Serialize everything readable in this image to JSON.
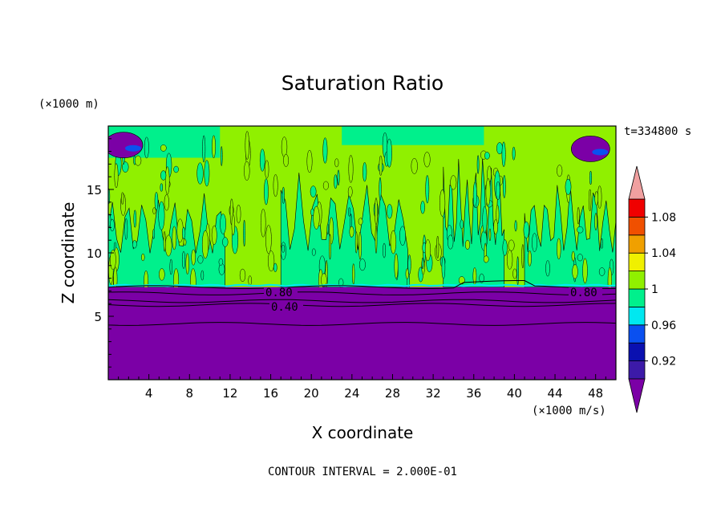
{
  "chart_data": {
    "type": "heatmap",
    "title": "Saturation Ratio",
    "xlabel": "X coordinate",
    "ylabel": "Z coordinate",
    "x_unit": "(×1000 m/s)",
    "y_unit": "(×1000 m)",
    "time_label": "t=334800 s",
    "footer": "CONTOUR INTERVAL = 2.000E-01",
    "xlim": [
      0,
      50
    ],
    "ylim": [
      0,
      20
    ],
    "x_ticks": [
      4,
      8,
      12,
      16,
      20,
      24,
      28,
      32,
      36,
      40,
      44,
      48
    ],
    "y_ticks": [
      5,
      10,
      15
    ],
    "colorbar": {
      "levels": [
        {
          "lo": null,
          "hi": 0.9,
          "color": "#7b00a6"
        },
        {
          "lo": 0.9,
          "hi": 0.92,
          "color": "#3c1aa8"
        },
        {
          "lo": 0.92,
          "hi": 0.94,
          "color": "#0a10b0"
        },
        {
          "lo": 0.94,
          "hi": 0.96,
          "color": "#0a50f0"
        },
        {
          "lo": 0.96,
          "hi": 0.98,
          "color": "#00e8f0"
        },
        {
          "lo": 0.98,
          "hi": 1.0,
          "color": "#00f08c"
        },
        {
          "lo": 1.0,
          "hi": 1.02,
          "color": "#90f000"
        },
        {
          "lo": 1.02,
          "hi": 1.04,
          "color": "#f0f000"
        },
        {
          "lo": 1.04,
          "hi": 1.06,
          "color": "#f0a000"
        },
        {
          "lo": 1.06,
          "hi": 1.08,
          "color": "#f05000"
        },
        {
          "lo": 1.08,
          "hi": 1.1,
          "color": "#f00000"
        },
        {
          "lo": 1.1,
          "hi": null,
          "color": "#f0a0a0"
        }
      ],
      "tick_labels": [
        "0.92",
        "0.96",
        "1",
        "1.04",
        "1.08"
      ]
    },
    "contour_labels": [
      "0.80",
      "0.40",
      "0.80"
    ],
    "regions": [
      {
        "label": "lower layer, saturation ratio below 0.9",
        "z_top": 7.3
      },
      {
        "label": "upper layer, alternating 0.98–1.0 and 1.0–1.02 bands",
        "z_bottom": 7.3,
        "z_top": 20
      }
    ]
  },
  "colors": {
    "purple": "#7b00a6",
    "green": "#00f08c",
    "lime": "#90f000",
    "cyan": "#00e8f0",
    "blue": "#0a50f0"
  }
}
